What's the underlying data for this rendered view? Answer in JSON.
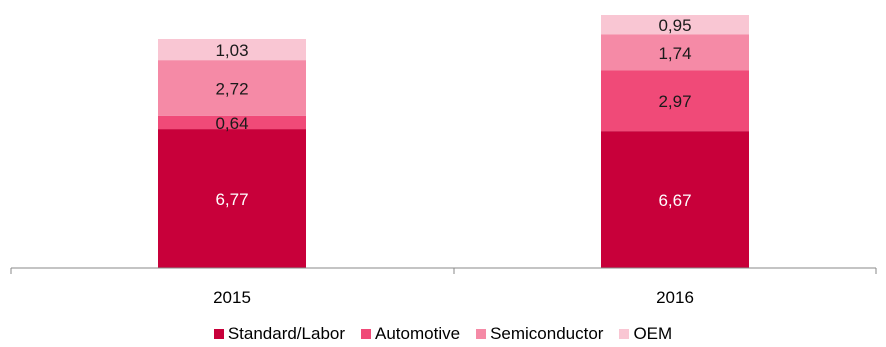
{
  "chart_data": {
    "type": "bar",
    "stacked": true,
    "categories": [
      "2015",
      "2016"
    ],
    "series": [
      {
        "name": "Standard/Labor",
        "values": [
          "6,77",
          "6,67"
        ],
        "numeric": [
          6.77,
          6.67
        ],
        "color": "#c8003a"
      },
      {
        "name": "Automotive",
        "values": [
          "0,64",
          "2,97"
        ],
        "numeric": [
          0.64,
          2.97
        ],
        "color": "#f04a78"
      },
      {
        "name": "Semiconductor",
        "values": [
          "2,72",
          "1,74"
        ],
        "numeric": [
          2.72,
          1.74
        ],
        "color": "#f58aa6"
      },
      {
        "name": "OEM",
        "values": [
          "1,03",
          "0,95"
        ],
        "numeric": [
          1.03,
          0.95
        ],
        "color": "#f9c6d3"
      }
    ],
    "title": "",
    "xlabel": "",
    "ylabel": "",
    "ylim": [
      0,
      12.33
    ],
    "grid": false,
    "legend": "bottom"
  }
}
